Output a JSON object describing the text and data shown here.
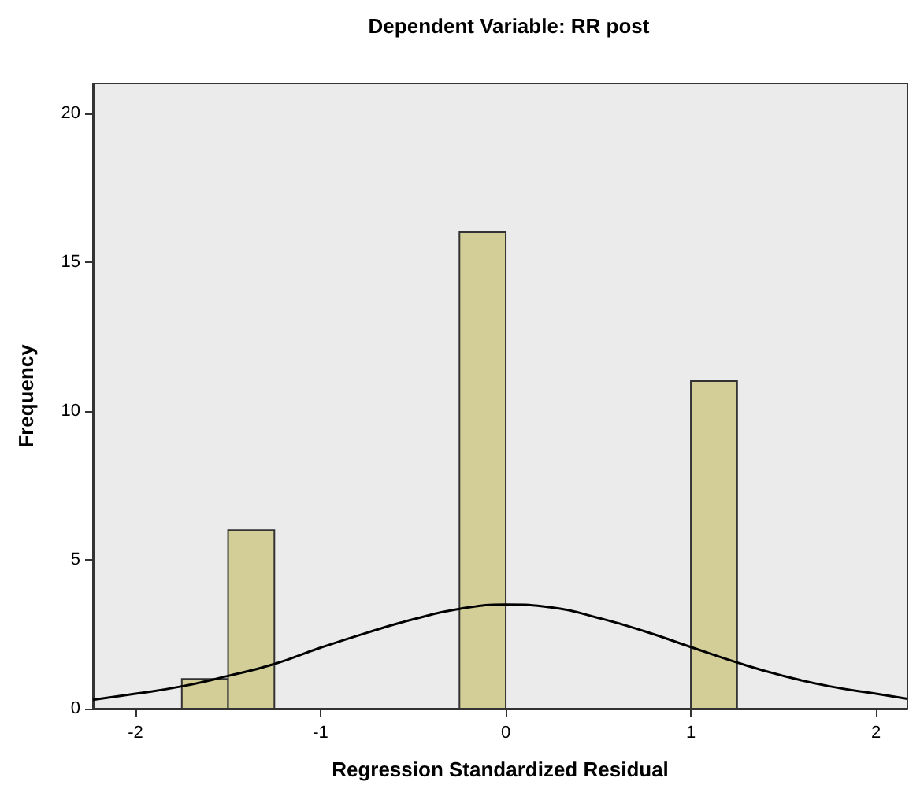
{
  "chart_data": {
    "type": "histogram",
    "title": "Dependent Variable: RR post",
    "xlabel": "Regression Standardized Residual",
    "ylabel": "Frequency",
    "xlim": [
      -2.23,
      2.17
    ],
    "xticks": [
      -2,
      -1,
      0,
      1,
      2
    ],
    "ylim": [
      0,
      21
    ],
    "yticks": [
      0,
      5,
      10,
      15,
      20
    ],
    "grid": false,
    "series": [
      {
        "type": "histogram",
        "color": "#d3ce97",
        "bins": [
          -1.75,
          -1.5,
          -1.25,
          -1,
          -0.75,
          -0.5,
          -0.25,
          0,
          0.25,
          0.5,
          0.75,
          1,
          1.25
        ],
        "values": [
          1,
          6,
          0,
          0,
          0,
          0,
          16,
          0,
          0,
          0,
          0,
          11
        ]
      },
      {
        "type": "line",
        "color": "#000000",
        "marker": "none",
        "x": [
          -2.23,
          -2,
          -1.75,
          -1.5,
          -1.25,
          -1,
          -0.75,
          -0.5,
          -0.25,
          0,
          0.25,
          0.5,
          0.75,
          1,
          1.25,
          1.5,
          1.75,
          2,
          2.17
        ],
        "values": [
          0.3,
          0.5,
          0.75,
          1.1,
          1.5,
          2.05,
          2.55,
          3.0,
          3.35,
          3.5,
          3.4,
          3.05,
          2.6,
          2.07,
          1.55,
          1.1,
          0.75,
          0.5,
          0.33
        ]
      }
    ]
  }
}
